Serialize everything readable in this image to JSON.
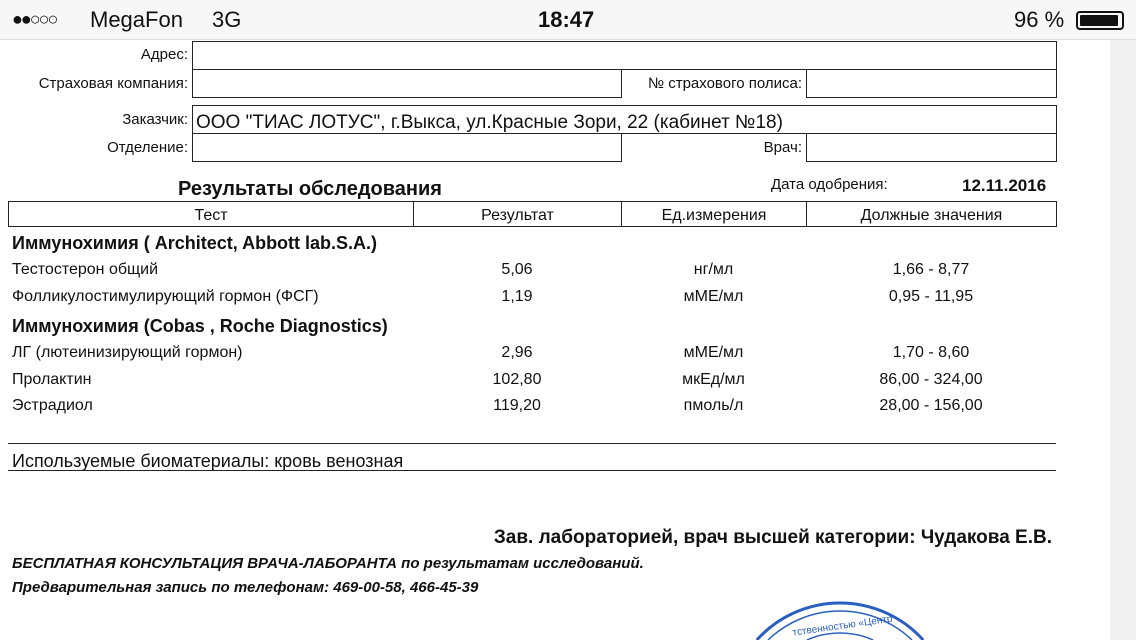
{
  "status_bar": {
    "signal": "●●○○○",
    "carrier": "MegaFon",
    "network": "3G",
    "time": "18:47",
    "battery_text": "96 %",
    "battery_level": 0.96
  },
  "form": {
    "address_label": "Адрес:",
    "address_value": "",
    "insurance_label": "Страховая компания:",
    "insurance_value": "",
    "policy_label": "№ страхового полиса:",
    "policy_value": "",
    "customer_label": "Заказчик:",
    "customer_value": "ООО \"ТИАС ЛОТУС\", г.Выкса, ул.Красные Зори, 22 (кабинет №18)",
    "department_label": "Отделение:",
    "department_value": "",
    "doctor_label": "Врач:",
    "doctor_value": ""
  },
  "results": {
    "title": "Результаты обследования",
    "approval_label": "Дата одобрения:",
    "approval_date": "12.11.2016",
    "columns": [
      "Тест",
      "Результат",
      "Ед.измерения",
      "Должные значения"
    ],
    "sections": [
      {
        "name": "Иммунохимия ( Architect, Abbott lab.S.A.)",
        "rows": [
          {
            "test": "Тестостерон общий",
            "result": "5,06",
            "unit": "нг/мл",
            "ref": "1,66 - 8,77"
          },
          {
            "test": "Фолликулостимулирующий гормон (ФСГ)",
            "result": "1,19",
            "unit": "мМЕ/мл",
            "ref": "0,95 - 11,95"
          }
        ]
      },
      {
        "name": "Иммунохимия (Cobas , Roche Diagnostics)",
        "rows": [
          {
            "test": "ЛГ (лютеинизирующий гормон)",
            "result": "2,96",
            "unit": "мМЕ/мл",
            "ref": "1,70 - 8,60"
          },
          {
            "test": "Пролактин",
            "result": "102,80",
            "unit": "мкЕд/мл",
            "ref": "86,00 - 324,00"
          },
          {
            "test": "Эстрадиол",
            "result": "119,20",
            "unit": "пмоль/л",
            "ref": "28,00 - 156,00"
          }
        ]
      }
    ]
  },
  "biomaterials": "Используемые биоматериалы: кровь венозная",
  "signature": "Зав. лабораторией, врач высшей категории: Чудакова Е.В.",
  "footer_line1": "БЕСПЛАТНАЯ КОНСУЛЬТАЦИЯ ВРАЧА-ЛАБОРАНТА по результатам исследований.",
  "footer_line2": "Предварительная запись по телефонам: 469-00-58, 466-45-39",
  "stamp_text": "...тственностью «Центр...",
  "colors": {
    "stamp": "#2a5fc0"
  }
}
